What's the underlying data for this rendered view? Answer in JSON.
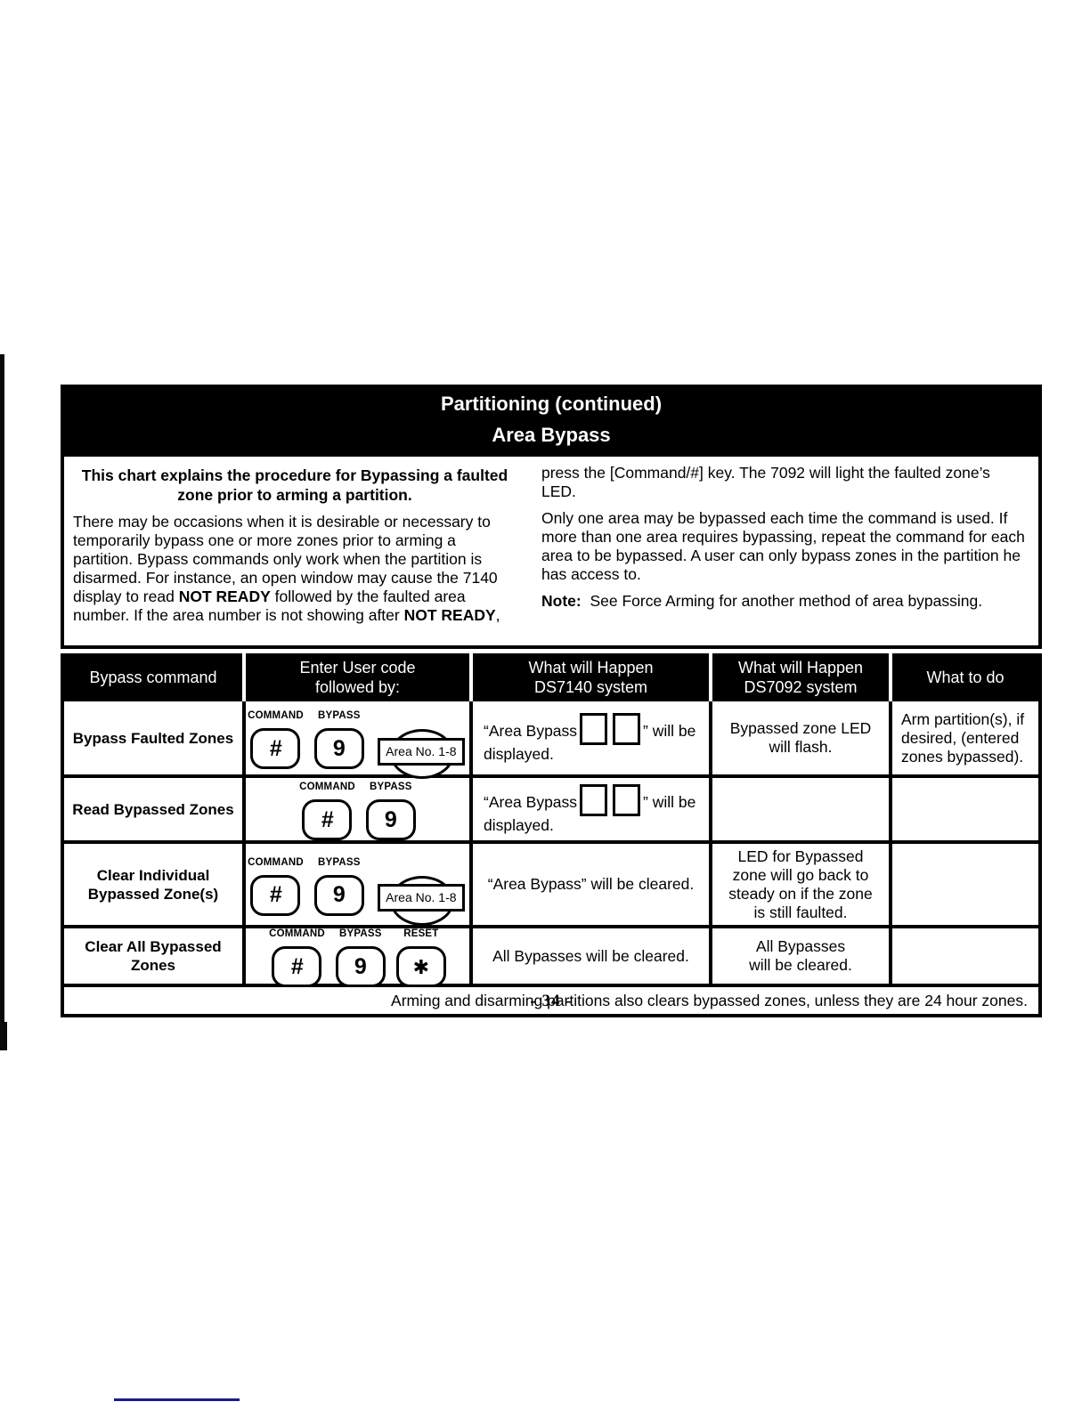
{
  "page_number": "- 34 -",
  "title": {
    "line1": "Partitioning (continued)",
    "line2": "Area Bypass"
  },
  "intro": {
    "heading": "This chart explains the procedure for Bypassing a faulted zone prior to arming a partition.",
    "p1_seg1": "There may be occasions when it is desirable or necessary to temporarily bypass one or more zones prior to arming a partition. Bypass commands only work when the partition is disarmed. For instance, an open window may cause the 7140 display to read ",
    "p1_bold1": "NOT READY",
    "p1_seg2": " followed by the faulted area number. If the area number is not showing after ",
    "p1_bold2": "NOT READY",
    "p1_seg3": ",",
    "p2": "press the [Command/#] key. The 7092 will light the faulted zone’s LED.",
    "p3": "Only one area may be bypassed each time the command is used. If more than one area requires bypassing, repeat the command for each area to be bypassed. A user can only bypass zones in the partition he has access to.",
    "note_label": "Note:",
    "note_text": "See Force Arming for another method of area bypassing."
  },
  "table": {
    "headers": [
      "Bypass command",
      "Enter User code\nfollowed by:",
      "What will Happen\nDS7140 system",
      "What will Happen\nDS7092 system",
      "What to do"
    ],
    "rows": [
      {
        "command": "Bypass Faulted Zones",
        "keys": [
          {
            "label": "COMMAND",
            "glyph": "#"
          },
          {
            "label": "BYPASS",
            "glyph": "9"
          }
        ],
        "area_chip": "Area No. 1-8",
        "ds7140_seg1": "“Area Bypass",
        "ds7140_seg2": "” will be",
        "ds7140_line2": "displayed.",
        "ds7092": "Bypassed zone LED\nwill flash.",
        "what_to_do": "Arm partition(s), if\ndesired, (entered\nzones bypassed)."
      },
      {
        "command": "Read Bypassed Zones",
        "keys": [
          {
            "label": "COMMAND",
            "glyph": "#"
          },
          {
            "label": "BYPASS",
            "glyph": "9"
          }
        ],
        "ds7140_seg1": "“Area Bypass",
        "ds7140_seg2": "” will be",
        "ds7140_line2": "displayed.",
        "ds7092": "",
        "what_to_do": ""
      },
      {
        "command": "Clear Individual\nBypassed Zone(s)",
        "keys": [
          {
            "label": "COMMAND",
            "glyph": "#"
          },
          {
            "label": "BYPASS",
            "glyph": "9"
          }
        ],
        "area_chip": "Area No. 1-8",
        "ds7140": "“Area Bypass” will be cleared.",
        "ds7092": "LED for Bypassed\nzone will go back to\nsteady on if the zone\nis still faulted.",
        "what_to_do": ""
      },
      {
        "command": "Clear All Bypassed\nZones",
        "keys": [
          {
            "label": "COMMAND",
            "glyph": "#"
          },
          {
            "label": "BYPASS",
            "glyph": "9"
          },
          {
            "label": "RESET",
            "glyph": "✱"
          }
        ],
        "ds7140": "All Bypasses will be cleared.",
        "ds7092": "All Bypasses\nwill be cleared.",
        "what_to_do": ""
      }
    ],
    "footer_note": "Arming and disarming partitions also clears bypassed zones, unless they are 24 hour zones."
  },
  "colors": {
    "ink": "#000000",
    "paper": "#ffffff",
    "scan_mark_blue": "#1b1b8e"
  }
}
